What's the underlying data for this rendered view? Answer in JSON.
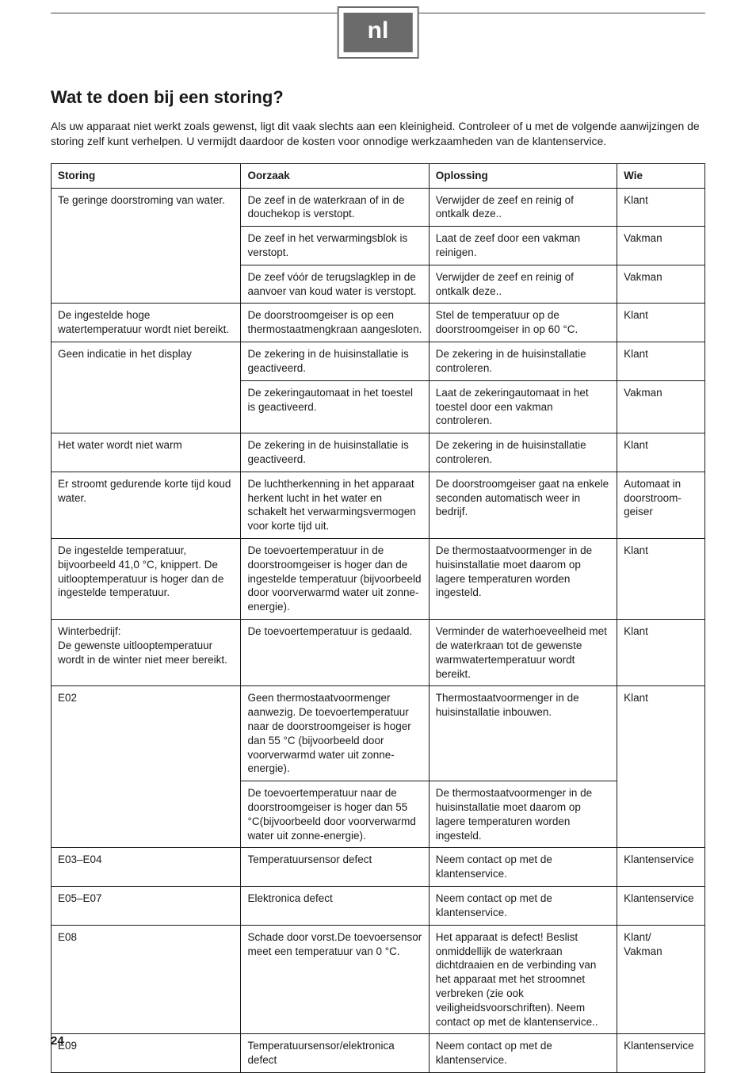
{
  "lang_tab": "nl",
  "title": "Wat te doen bij een storing?",
  "intro": "Als uw apparaat niet werkt zoals gewenst, ligt dit vaak slechts aan een kleinigheid. Controleer of u met de volgende aanwijzingen de storing zelf kunt verhelpen. U vermijdt daardoor de kosten voor onnodige werkzaamheden van de klantenservice.",
  "headers": {
    "storing": "Storing",
    "oorzaak": "Oorzaak",
    "oplossing": "Oplossing",
    "wie": "Wie"
  },
  "rows": [
    {
      "storing": "Te geringe doorstroming van water.",
      "storing_rowspan": 3,
      "oorzaak": "De zeef in de waterkraan of in de douchekop is verstopt.",
      "oplossing": "Verwijder de zeef en reinig of ontkalk deze..",
      "wie": "Klant"
    },
    {
      "oorzaak": "De zeef in het verwarmingsblok is verstopt.",
      "oplossing": "Laat de zeef door een vakman reinigen.",
      "wie": "Vakman"
    },
    {
      "oorzaak": "De zeef vóór de terugslagklep in de aanvoer van koud water is verstopt.",
      "oplossing": "Verwijder de zeef en reinig of ontkalk deze..",
      "wie": "Vakman"
    },
    {
      "storing": "De ingestelde hoge watertemperatuur wordt niet bereikt.",
      "oorzaak": "De doorstroomgeiser is op een thermostaatmengkraan aangesloten.",
      "oplossing": "Stel de temperatuur op de doorstroomgeiser in op 60 °C.",
      "wie": "Klant"
    },
    {
      "storing": "Geen indicatie in het display",
      "storing_rowspan": 2,
      "oorzaak": "De zekering in de huisinstallatie is geactiveerd.",
      "oplossing": "De zekering in de huisinstallatie controleren.",
      "wie": "Klant"
    },
    {
      "oorzaak": "De zekeringautomaat in het toestel is geactiveerd.",
      "oplossing": "Laat de zekeringautomaat in het toestel door een vakman controleren.",
      "wie": "Vakman"
    },
    {
      "storing": "Het water wordt niet warm",
      "oorzaak": "De zekering in de huisinstallatie is geactiveerd.",
      "oplossing": "De zekering in de huisinstallatie controleren.",
      "wie": "Klant"
    },
    {
      "storing": "Er stroomt gedurende korte tijd koud water.",
      "oorzaak": "De luchtherkenning in het apparaat herkent lucht in het water en schakelt het verwarmingsvermogen voor korte tijd uit.",
      "oplossing": "De doorstroomgeiser gaat na enkele seconden automatisch weer in bedrijf.",
      "wie": "Automaat in doorstroom­geiser"
    },
    {
      "storing": "De ingestelde temperatuur, bijvoorbeeld 41,0 °C, knippert. De uitlooptemperatuur is hoger dan de ingestelde temperatuur.",
      "oorzaak": "De toevoertemperatuur in de doorstroomgeiser is hoger dan de ingestelde temperatuur (bijvoorbeeld door voorverwarmd water uit zonne-energie).",
      "oplossing": "De thermostaatvoormenger in de huisinstallatie moet daarom op lagere temperaturen worden ingesteld.",
      "wie": "Klant"
    },
    {
      "storing": "Winterbedrijf:\nDe gewenste uitlooptemperatuur wordt in de winter niet meer bereikt.",
      "oorzaak": "De toevoertemperatuur is gedaald.",
      "oplossing": "Verminder de waterhoeveelheid met de waterkraan tot de gewenste warmwatertemperatuur wordt bereikt.",
      "wie": "Klant"
    },
    {
      "storing": "E02",
      "storing_rowspan": 2,
      "oorzaak": "Geen thermostaatvoormenger aanwezig. De toevoertemperatuur naar de doorstroomgeiser is hoger dan 55 °C (bijvoorbeeld door voorverwarmd water uit zonne-energie).",
      "oplossing": "Thermostaatvoormenger in de huisinstallatie inbouwen.",
      "wie": "Klant",
      "wie_rowspan": 2
    },
    {
      "oorzaak": "De toevoertemperatuur naar de doorstroomgeiser is hoger dan 55 °C(bijvoorbeeld door voorverwarmd water uit zonne-energie).",
      "oplossing": "De thermostaatvoormenger in de huisinstallatie moet daarom op lagere temperaturen worden ingesteld."
    },
    {
      "storing": "E03–E04",
      "oorzaak": "Temperatuursensor defect",
      "oplossing": "Neem contact op met de klantenservice.",
      "wie": "Klantenservice"
    },
    {
      "storing": "E05–E07",
      "oorzaak": "Elektronica defect",
      "oplossing": "Neem contact op met de klantenservice.",
      "wie": "Klantenservice"
    },
    {
      "storing": "E08",
      "oorzaak": "Schade door vorst.De toevoersensor meet een temperatuur van 0 °C.",
      "oplossing": "Het apparaat is defect! Beslist onmiddellijk de waterkraan dichtdraaien en de verbinding van het apparaat met het stroomnet verbreken (zie ook veiligheidsvoorschriften). Neem contact op met de klantenservice..",
      "wie": "Klant/\nVakman"
    },
    {
      "storing": "E09",
      "oorzaak": "Temperatuursensor/elektronica defect",
      "oplossing": "Neem contact op met de klantenservice.",
      "wie": "Klantenservice"
    }
  ],
  "page_number": "24"
}
